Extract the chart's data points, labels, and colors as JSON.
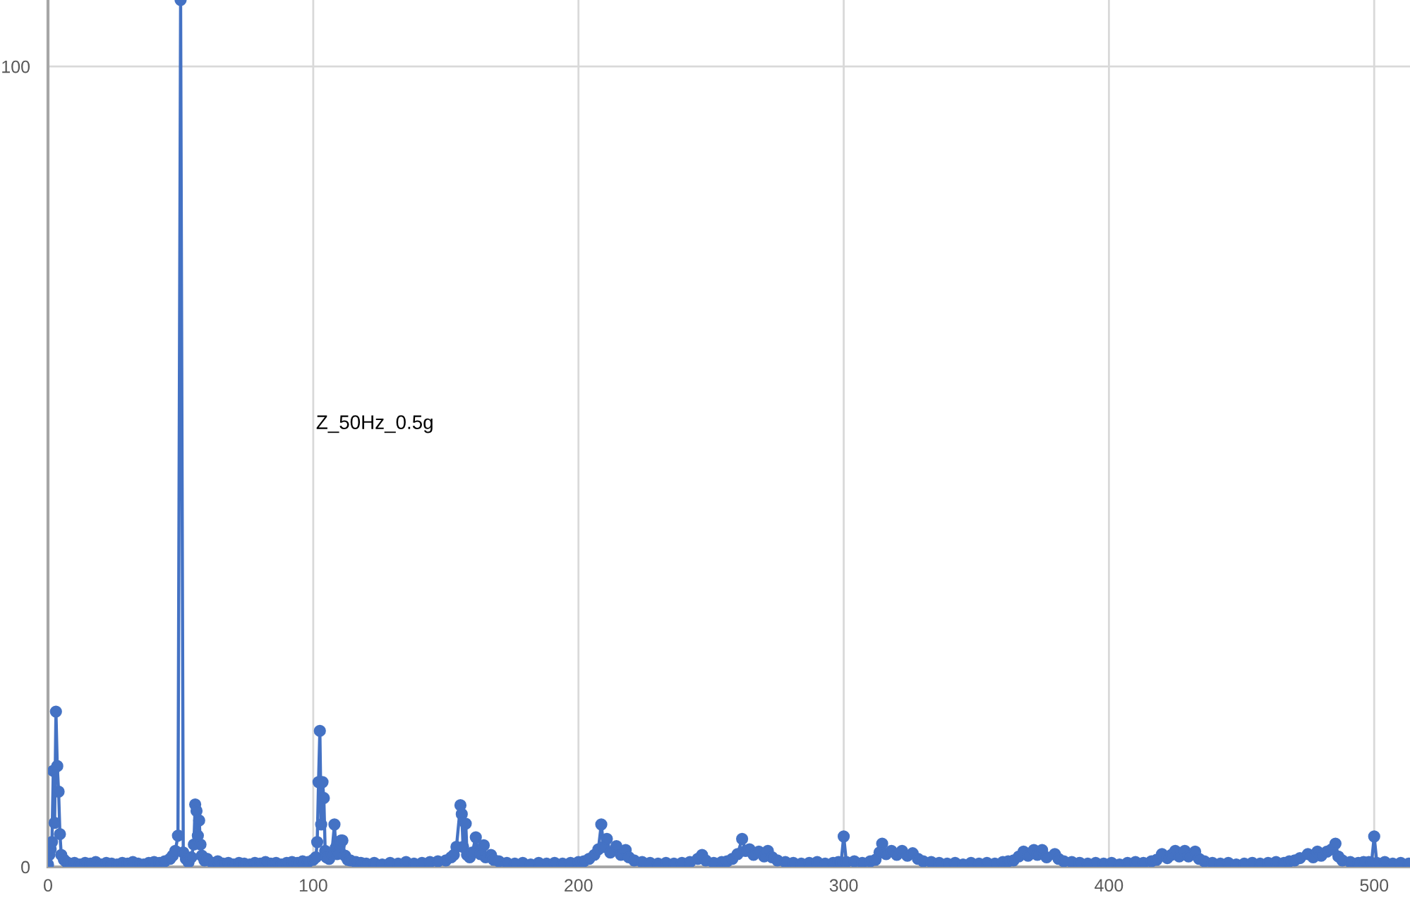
{
  "chart_data": {
    "type": "line",
    "title": "Z_50Hz_0.5g",
    "x": [
      0,
      0.5,
      1,
      1.5,
      2,
      2.5,
      3,
      3.5,
      4,
      4.5,
      5,
      6,
      7,
      8,
      10,
      12,
      14,
      16,
      18,
      20,
      22,
      24,
      26,
      28,
      30,
      32,
      34,
      36,
      38,
      40,
      42,
      44,
      46,
      47,
      48,
      49,
      50,
      51,
      52,
      53,
      54,
      55,
      55.5,
      56,
      56.5,
      57,
      57.5,
      58,
      59,
      60,
      62,
      64,
      66,
      68,
      70,
      72,
      74,
      76,
      78,
      80,
      82,
      84,
      86,
      88,
      90,
      92,
      94,
      96,
      98,
      100,
      101,
      101.5,
      102,
      102.5,
      103,
      103.5,
      104,
      104.5,
      105,
      106,
      107,
      108,
      108.5,
      109,
      110,
      110.5,
      111,
      112,
      113,
      114,
      116,
      118,
      120,
      123,
      126,
      129,
      132,
      135,
      138,
      141,
      144,
      147,
      150,
      152,
      153,
      154,
      155.5,
      156,
      156.5,
      157.5,
      158,
      159,
      160,
      161.3,
      162,
      163,
      164.3,
      165,
      167,
      168,
      170,
      173,
      176,
      179,
      182,
      185,
      188,
      191,
      194,
      197,
      200,
      202,
      204,
      206,
      207.5,
      208.6,
      209.5,
      210.7,
      212,
      214.3,
      216,
      217.8,
      219,
      221,
      224,
      227,
      230,
      233,
      236,
      239,
      242,
      245,
      246.6,
      248,
      251,
      254,
      256,
      258,
      260,
      261.7,
      263,
      264.5,
      266,
      268,
      270,
      271.4,
      273,
      275,
      278,
      281,
      284,
      287,
      290,
      293,
      296,
      298,
      299,
      300,
      301,
      304,
      307,
      310,
      312,
      313.5,
      314.5,
      316,
      318,
      320,
      322,
      324,
      326,
      328,
      330,
      333,
      336,
      339,
      342,
      345,
      348,
      351,
      354,
      357,
      360,
      362,
      364,
      366,
      367.8,
      369.5,
      371.7,
      373,
      374.8,
      376.5,
      379.6,
      381,
      383,
      386,
      389,
      392,
      395,
      398,
      401,
      404,
      407,
      410,
      413,
      416,
      418,
      420,
      422,
      423.5,
      425,
      426.5,
      428.6,
      430,
      432.5,
      434,
      436,
      439,
      442,
      445,
      448,
      451,
      454,
      457,
      460,
      463,
      466,
      468,
      470,
      472,
      475,
      477,
      478.6,
      480,
      482.2,
      484,
      485.4,
      486.5,
      488,
      491,
      494,
      496,
      498,
      499,
      500,
      501,
      504,
      507,
      510,
      513
    ],
    "series": [
      {
        "color": "#4472c4",
        "values": [
          0.3,
          1.5,
          2.2,
          3.1,
          12.0,
          5.5,
          19.4,
          12.6,
          9.4,
          4.1,
          1.5,
          0.9,
          0.6,
          0.4,
          0.5,
          0.3,
          0.5,
          0.4,
          0.6,
          0.3,
          0.5,
          0.4,
          0.3,
          0.5,
          0.4,
          0.6,
          0.4,
          0.3,
          0.5,
          0.6,
          0.5,
          0.7,
          1.0,
          1.4,
          2.0,
          3.9,
          108.3,
          1.8,
          1.0,
          0.6,
          1.2,
          2.8,
          7.8,
          7.0,
          3.9,
          5.8,
          2.8,
          1.4,
          0.8,
          1.0,
          0.5,
          0.7,
          0.4,
          0.5,
          0.3,
          0.5,
          0.4,
          0.3,
          0.5,
          0.4,
          0.6,
          0.4,
          0.5,
          0.3,
          0.5,
          0.6,
          0.5,
          0.7,
          0.6,
          0.9,
          1.2,
          3.1,
          10.6,
          17.0,
          5.3,
          10.6,
          8.6,
          2.0,
          1.2,
          1.0,
          1.6,
          5.3,
          2.4,
          1.6,
          2.7,
          3.3,
          3.3,
          1.4,
          0.9,
          0.8,
          0.6,
          0.5,
          0.4,
          0.5,
          0.3,
          0.5,
          0.4,
          0.6,
          0.4,
          0.5,
          0.6,
          0.7,
          0.8,
          1.2,
          1.5,
          2.5,
          7.7,
          6.6,
          2.5,
          5.4,
          1.5,
          1.2,
          1.8,
          3.7,
          2.0,
          1.6,
          2.7,
          1.2,
          1.5,
          0.9,
          0.7,
          0.5,
          0.4,
          0.5,
          0.3,
          0.5,
          0.4,
          0.5,
          0.4,
          0.5,
          0.6,
          0.7,
          1.0,
          1.5,
          2.2,
          5.3,
          2.5,
          3.5,
          1.8,
          2.6,
          1.5,
          2.1,
          1.2,
          0.8,
          0.6,
          0.5,
          0.4,
          0.5,
          0.4,
          0.5,
          0.6,
          1.0,
          1.5,
          0.8,
          0.5,
          0.6,
          0.7,
          1.0,
          1.6,
          3.5,
          2.0,
          2.2,
          1.5,
          1.9,
          1.3,
          2.0,
          1.2,
          0.8,
          0.6,
          0.5,
          0.4,
          0.5,
          0.6,
          0.4,
          0.5,
          0.6,
          0.5,
          3.8,
          0.6,
          0.7,
          0.5,
          0.7,
          0.9,
          1.8,
          2.9,
          1.6,
          2.0,
          1.5,
          2.0,
          1.4,
          1.7,
          1.0,
          0.7,
          0.6,
          0.5,
          0.4,
          0.5,
          0.3,
          0.5,
          0.4,
          0.5,
          0.4,
          0.6,
          0.7,
          0.8,
          1.3,
          1.9,
          1.4,
          2.1,
          1.5,
          2.1,
          1.2,
          1.6,
          1.0,
          0.7,
          0.6,
          0.5,
          0.4,
          0.5,
          0.4,
          0.5,
          0.3,
          0.5,
          0.6,
          0.5,
          0.7,
          0.9,
          1.6,
          1.1,
          1.5,
          2.0,
          1.3,
          2.0,
          1.3,
          1.9,
          1.0,
          0.7,
          0.5,
          0.4,
          0.5,
          0.3,
          0.4,
          0.5,
          0.4,
          0.5,
          0.6,
          0.5,
          0.7,
          0.8,
          1.1,
          1.6,
          1.2,
          1.9,
          1.4,
          1.9,
          2.2,
          2.9,
          1.3,
          0.8,
          0.6,
          0.5,
          0.6,
          0.6,
          0.5,
          3.8,
          0.5,
          0.6,
          0.4,
          0.5,
          0.4
        ]
      }
    ],
    "xlim": [
      0,
      513.5
    ],
    "xticks": [
      0,
      100,
      200,
      300,
      400,
      500
    ],
    "ylim": [
      0,
      108.3
    ],
    "yticks": [
      0,
      100
    ],
    "grid": true,
    "marker": "circle",
    "line_style": "solid"
  }
}
